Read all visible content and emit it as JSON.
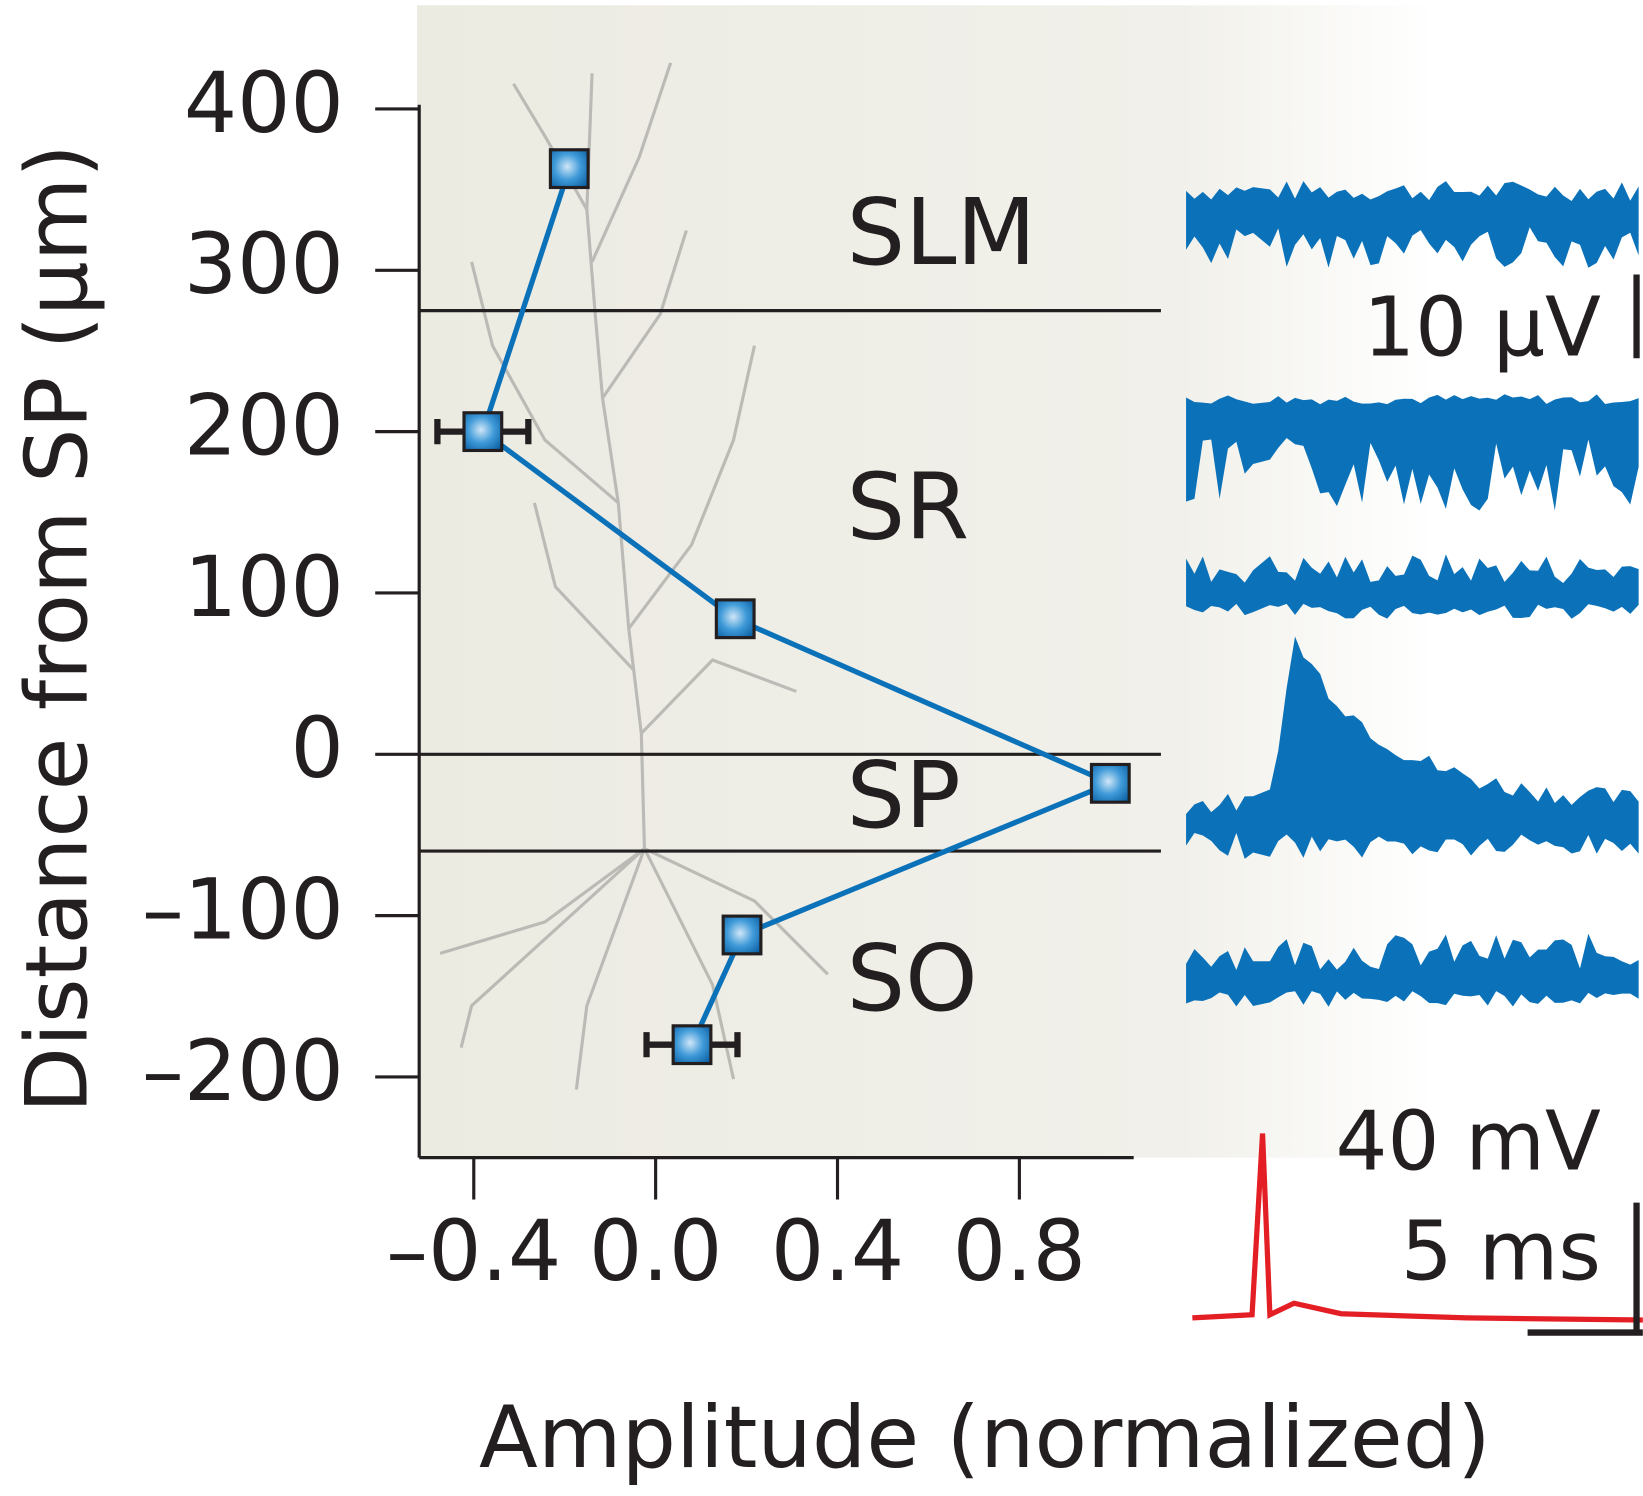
{
  "chart_data": {
    "type": "line",
    "xlabel": "Amplitude (normalized)",
    "ylabel": "Distance from SP (μm)",
    "series": [
      {
        "color": "#0b72b9",
        "x": [
          -0.19,
          -0.38,
          0.175,
          1.0,
          0.19,
          0.08
        ],
        "values": [
          363,
          200,
          84,
          -18,
          -112,
          -180
        ],
        "xerr": [
          null,
          0.1,
          null,
          null,
          null,
          0.1
        ]
      }
    ],
    "xlim": [
      -0.52,
      1.05
    ],
    "xticks": [
      {
        "value": -0.4,
        "label": "–0.4"
      },
      {
        "value": 0,
        "label": "0.0"
      },
      0.4,
      0.8
    ],
    "ylim": [
      -250,
      400
    ],
    "yticks": [
      400,
      300,
      200,
      100,
      0,
      {
        "value": -100,
        "label": "–100"
      },
      {
        "value": -200,
        "label": "–200"
      }
    ],
    "layer_boundaries": [
      275,
      0,
      -60
    ],
    "layer_labels": [
      "SLM",
      "SR",
      "SP",
      "SO"
    ],
    "scale_labels": [
      "10 μV",
      "40 mV",
      "5 ms"
    ]
  }
}
